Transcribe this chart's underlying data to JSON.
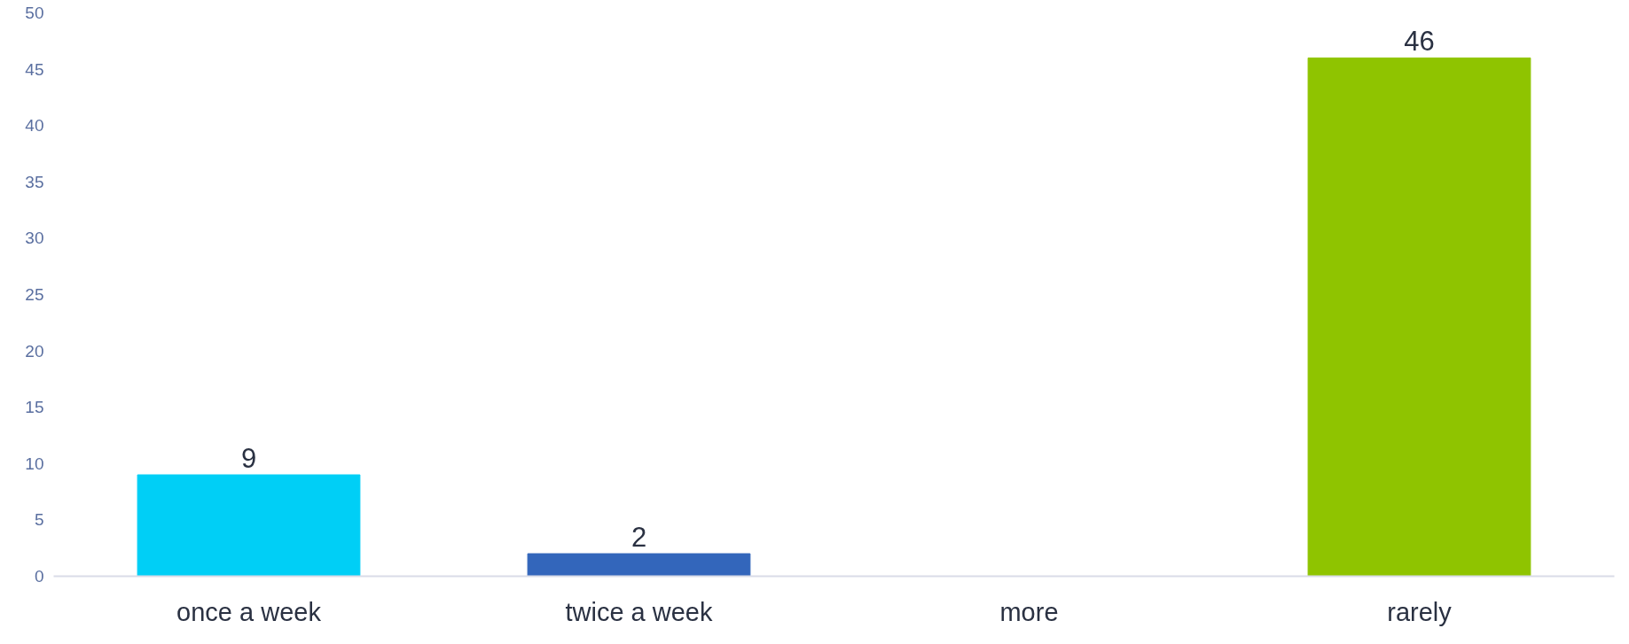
{
  "chart_data": {
    "type": "bar",
    "categories": [
      "once a week",
      "twice a week",
      "more",
      "rarely"
    ],
    "values": [
      9,
      2,
      null,
      46
    ],
    "colors": [
      "#00cff6",
      "#3366bb",
      "#8fc400",
      "#8fc400"
    ],
    "value_labels": [
      "9",
      "2",
      null,
      "46"
    ],
    "ylim": [
      0,
      50
    ],
    "yticks": [
      0,
      5,
      10,
      15,
      20,
      25,
      30,
      35,
      40,
      45,
      50
    ],
    "grid": false
  }
}
